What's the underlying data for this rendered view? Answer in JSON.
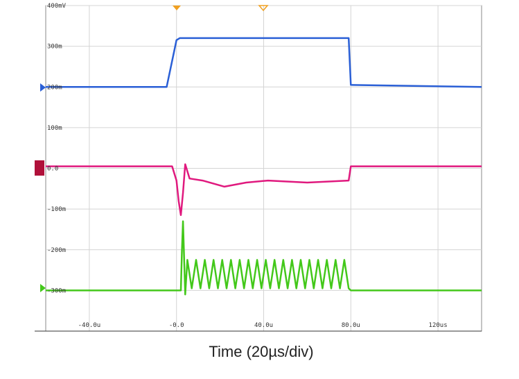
{
  "chart_data": {
    "type": "line",
    "xlabel": "Time (20µs/div)",
    "xlim": [
      -60,
      140
    ],
    "ylim": [
      -400,
      400
    ],
    "xticks": [
      {
        "value": -40,
        "label": "-40.0u"
      },
      {
        "value": 0,
        "label": "-0.0"
      },
      {
        "value": 40,
        "label": "40.0u"
      },
      {
        "value": 80,
        "label": "80.0u"
      },
      {
        "value": 120,
        "label": "120us"
      }
    ],
    "yticks": [
      {
        "value": 400,
        "label": "400mV"
      },
      {
        "value": 300,
        "label": "300m"
      },
      {
        "value": 200,
        "label": "200m"
      },
      {
        "value": 100,
        "label": "100m"
      },
      {
        "value": 0,
        "label": "0.0"
      },
      {
        "value": -100,
        "label": "-100m"
      },
      {
        "value": -200,
        "label": "-200m"
      },
      {
        "value": -300,
        "label": "-300m"
      }
    ],
    "grid": true,
    "series": [
      {
        "color": "#2a5fd6",
        "x": [
          -60,
          -4.5,
          0,
          1.5,
          79,
          80,
          140
        ],
        "values": [
          200,
          200,
          315,
          320,
          320,
          205,
          200
        ]
      },
      {
        "color": "#e0197e",
        "x": [
          -60,
          -2,
          0,
          1,
          2,
          3,
          4,
          6,
          12,
          22,
          32,
          42,
          60,
          79,
          80,
          140
        ],
        "values": [
          5,
          5,
          -30,
          -80,
          -115,
          -60,
          10,
          -25,
          -30,
          -45,
          -35,
          -30,
          -35,
          -30,
          5,
          5
        ]
      },
      {
        "color": "#43c81a",
        "x": [
          -60,
          2,
          2.5,
          3,
          3.5,
          4,
          5,
          7,
          9,
          11,
          13,
          15,
          17,
          19,
          21,
          23,
          25,
          27,
          29,
          31,
          33,
          35,
          37,
          39,
          41,
          43,
          45,
          47,
          49,
          51,
          53,
          55,
          57,
          59,
          61,
          63,
          65,
          67,
          69,
          71,
          73,
          75,
          77,
          79,
          80,
          140
        ],
        "values": [
          -300,
          -300,
          -200,
          -130,
          -220,
          -310,
          -225,
          -295,
          -225,
          -295,
          -225,
          -295,
          -225,
          -295,
          -225,
          -295,
          -225,
          -295,
          -225,
          -295,
          -225,
          -295,
          -225,
          -295,
          -225,
          -295,
          -225,
          -295,
          -225,
          -295,
          -225,
          -295,
          -225,
          -295,
          -225,
          -295,
          -225,
          -295,
          -225,
          -295,
          -225,
          -295,
          -225,
          -295,
          -300,
          -300
        ]
      }
    ]
  }
}
